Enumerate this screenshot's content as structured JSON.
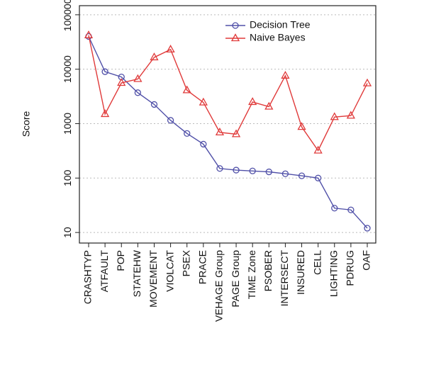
{
  "chart_data": {
    "type": "line",
    "y_label": "Score",
    "categories": [
      "CRASHTYP",
      "ATFAULT",
      "POP",
      "STATEHW",
      "MOVEMENT",
      "VIOLCAT",
      "PSEX",
      "PRACE",
      "VEHAGE Group",
      "PAGE Group",
      "TIME Zone",
      "PSOBER",
      "INTERSECT",
      "INSURED",
      "CELL",
      "LIGHTING",
      "PDRUG",
      "OAF"
    ],
    "series": [
      {
        "name": "Decision Tree",
        "color": "#5050a8",
        "marker": "circle",
        "values": [
          40000,
          9000,
          7200,
          3700,
          2250,
          1150,
          660,
          420,
          150,
          140,
          135,
          130,
          120,
          110,
          100,
          28,
          26,
          12
        ]
      },
      {
        "name": "Naive Bayes",
        "color": "#e03a3a",
        "marker": "triangle",
        "values": [
          42000,
          1500,
          5600,
          6600,
          16500,
          23000,
          4100,
          2450,
          690,
          640,
          2500,
          2050,
          7600,
          870,
          320,
          1320,
          1400,
          5500
        ]
      }
    ],
    "log_y": true,
    "ylim": [
      6.4,
      147000
    ],
    "yticks": [
      10,
      100,
      1000,
      10000,
      100000
    ],
    "grid": true,
    "legend": "upper right"
  }
}
